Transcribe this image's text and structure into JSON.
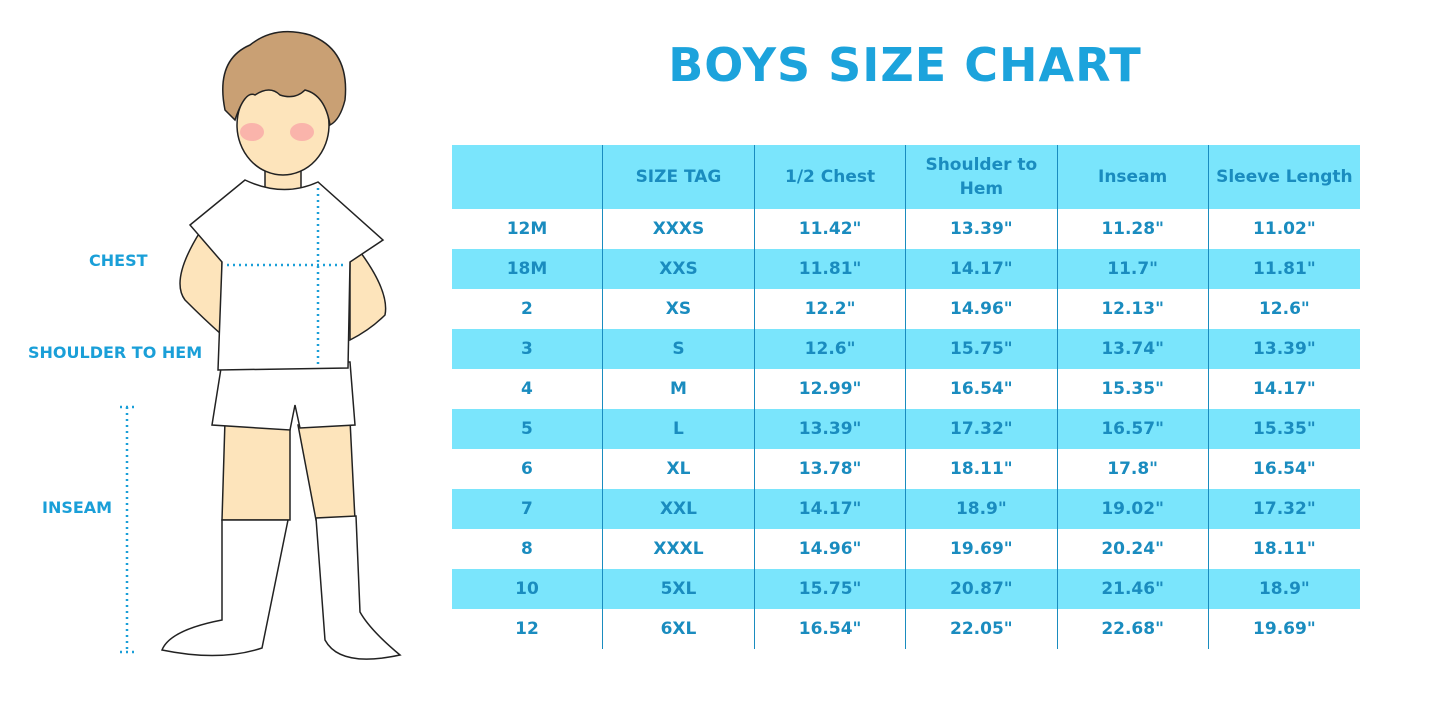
{
  "title": "BOYS SIZE CHART",
  "illustration_labels": {
    "chest": "CHEST",
    "shoulder_to_hem": "SHOULDER TO HEM",
    "inseam": "INSEAM"
  },
  "colors": {
    "accent": "#1ca3dc",
    "row_highlight": "#7ae5fc",
    "text": "#1a8cbf"
  },
  "table": {
    "headers": [
      "",
      "SIZE TAG",
      "1/2 Chest",
      "Shoulder to Hem",
      "Inseam",
      "Sleeve Length"
    ],
    "rows": [
      [
        "12M",
        "XXXS",
        "11.42\"",
        "13.39\"",
        "11.28\"",
        "11.02\""
      ],
      [
        "18M",
        "XXS",
        "11.81\"",
        "14.17\"",
        "11.7\"",
        "11.81\""
      ],
      [
        "2",
        "XS",
        "12.2\"",
        "14.96\"",
        "12.13\"",
        "12.6\""
      ],
      [
        "3",
        "S",
        "12.6\"",
        "15.75\"",
        "13.74\"",
        "13.39\""
      ],
      [
        "4",
        "M",
        "12.99\"",
        "16.54\"",
        "15.35\"",
        "14.17\""
      ],
      [
        "5",
        "L",
        "13.39\"",
        "17.32\"",
        "16.57\"",
        "15.35\""
      ],
      [
        "6",
        "XL",
        "13.78\"",
        "18.11\"",
        "17.8\"",
        "16.54\""
      ],
      [
        "7",
        "XXL",
        "14.17\"",
        "18.9\"",
        "19.02\"",
        "17.32\""
      ],
      [
        "8",
        "XXXL",
        "14.96\"",
        "19.69\"",
        "20.24\"",
        "18.11\""
      ],
      [
        "10",
        "5XL",
        "15.75\"",
        "20.87\"",
        "21.46\"",
        "18.9\""
      ],
      [
        "12",
        "6XL",
        "16.54\"",
        "22.05\"",
        "22.68\"",
        "19.69\""
      ]
    ]
  }
}
